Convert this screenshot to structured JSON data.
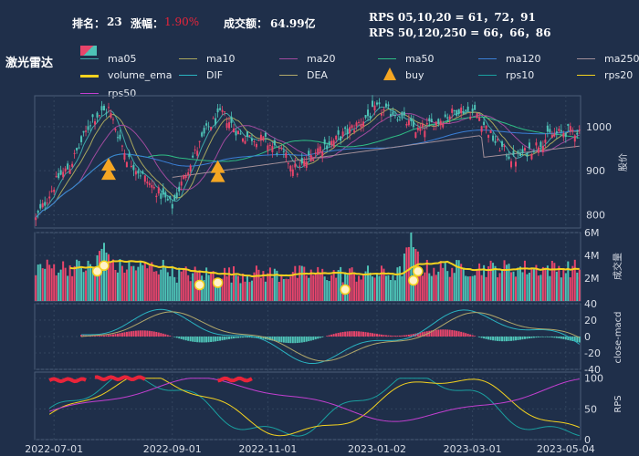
{
  "header": {
    "rank_label": "排名：",
    "rank_value": "23",
    "change_label": "涨幅：",
    "change_value": "1.90%",
    "turnover_label": "成交额：",
    "turnover_value": "64.99亿",
    "rps_short": "RPS 05,10,20 = 61，72，91",
    "rps_long": "RPS 50,120,250 = 66，66，86"
  },
  "stock_name": "激光雷达",
  "legend": {
    "items": [
      {
        "label": "ma05",
        "color": "#3fa7a8"
      },
      {
        "label": "ma10",
        "color": "#a9a75d"
      },
      {
        "label": "ma20",
        "color": "#a04a9e"
      },
      {
        "label": "ma50",
        "color": "#2fbe85"
      },
      {
        "label": "ma120",
        "color": "#3b7fd6"
      },
      {
        "label": "ma250",
        "color": "#a28f98"
      },
      {
        "label": "volume_ema",
        "color": "#f4d21f"
      },
      {
        "label": "DIF",
        "color": "#2ab3c1"
      },
      {
        "label": "DEA",
        "color": "#b2a86a"
      },
      {
        "label": "buy",
        "color": "#f5a623"
      },
      {
        "label": "rps10",
        "color": "#1aa0a0"
      },
      {
        "label": "rps20",
        "color": "#f4d21f"
      },
      {
        "label": "rps50",
        "color": "#c23fd0"
      }
    ]
  },
  "colors": {
    "background": "#1f2f4a",
    "up": "#e8456b",
    "down": "#4ec3b7",
    "highlight": "#e8243a",
    "change_value": "#e8243a"
  },
  "chart_data": [
    {
      "type": "candlestick",
      "ylabel": "股价",
      "yticks": [
        800,
        900,
        1000
      ],
      "ylim": [
        770,
        1070
      ],
      "x_dates": [
        "2022-07-01",
        "2022-09-01",
        "2022-11-01",
        "2023-01-02",
        "2023-03-01",
        "2023-05-04"
      ],
      "close_waypoints": [
        [
          0,
          790
        ],
        [
          10,
          885
        ],
        [
          15,
          910
        ],
        [
          25,
          1020
        ],
        [
          32,
          1040
        ],
        [
          40,
          930
        ],
        [
          50,
          870
        ],
        [
          60,
          820
        ],
        [
          68,
          920
        ],
        [
          76,
          1000
        ],
        [
          82,
          1030
        ],
        [
          90,
          980
        ],
        [
          100,
          970
        ],
        [
          108,
          940
        ],
        [
          115,
          900
        ],
        [
          124,
          950
        ],
        [
          132,
          970
        ],
        [
          140,
          1000
        ],
        [
          150,
          1040
        ],
        [
          158,
          1030
        ],
        [
          168,
          990
        ],
        [
          176,
          1010
        ],
        [
          186,
          1040
        ],
        [
          194,
          1030
        ],
        [
          202,
          965
        ],
        [
          210,
          925
        ],
        [
          218,
          950
        ],
        [
          226,
          980
        ],
        [
          234,
          990
        ]
      ],
      "buy_signals": [
        [
          32,
          900
        ],
        [
          80,
          895
        ]
      ]
    },
    {
      "type": "bar",
      "ylabel": "成交量",
      "yticks": [
        "2M",
        "4M",
        "6M"
      ],
      "ylim": [
        0,
        6
      ],
      "volume_peaks": [
        [
          30,
          5.1
        ],
        [
          165,
          6.0
        ]
      ],
      "volume_base": 2.6
    },
    {
      "type": "bar+line",
      "ylabel": "close-macd",
      "yticks": [
        -40,
        -20,
        0,
        20,
        40
      ],
      "ylim": [
        -40,
        40
      ]
    },
    {
      "type": "line",
      "ylabel": "RPS",
      "yticks": [
        0,
        50,
        100
      ],
      "ylim": [
        0,
        110
      ]
    }
  ]
}
